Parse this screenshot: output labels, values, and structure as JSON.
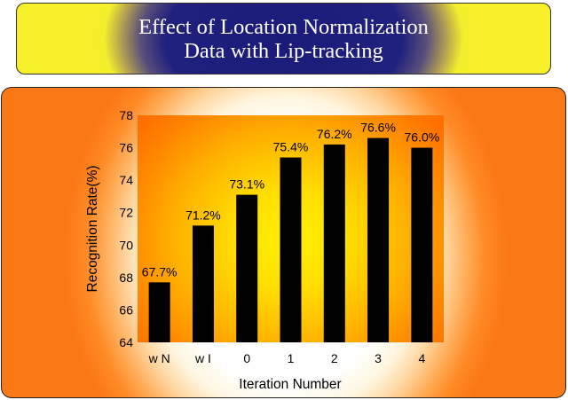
{
  "header": {
    "title_line1": "Effect of Location Normalization",
    "title_line2": "Data with Lip-tracking"
  },
  "chart_data": {
    "type": "bar",
    "title": "Effect of Location Normalization Data with Lip-tracking",
    "xlabel": "Iteration Number",
    "ylabel": "Recognition Rate(%)",
    "categories": [
      "w N",
      "w I",
      "0",
      "1",
      "2",
      "3",
      "4"
    ],
    "values": [
      67.7,
      71.2,
      73.1,
      75.4,
      76.2,
      76.6,
      76.0
    ],
    "data_labels": [
      "67.7%",
      "71.2%",
      "73.1%",
      "75.4%",
      "76.2%",
      "76.6%",
      "76.0%"
    ],
    "ylim": [
      64,
      78
    ],
    "yticks": [
      64,
      66,
      68,
      70,
      72,
      74,
      76,
      78
    ],
    "bar_color": "#000000",
    "grid": false,
    "legend": "none"
  }
}
